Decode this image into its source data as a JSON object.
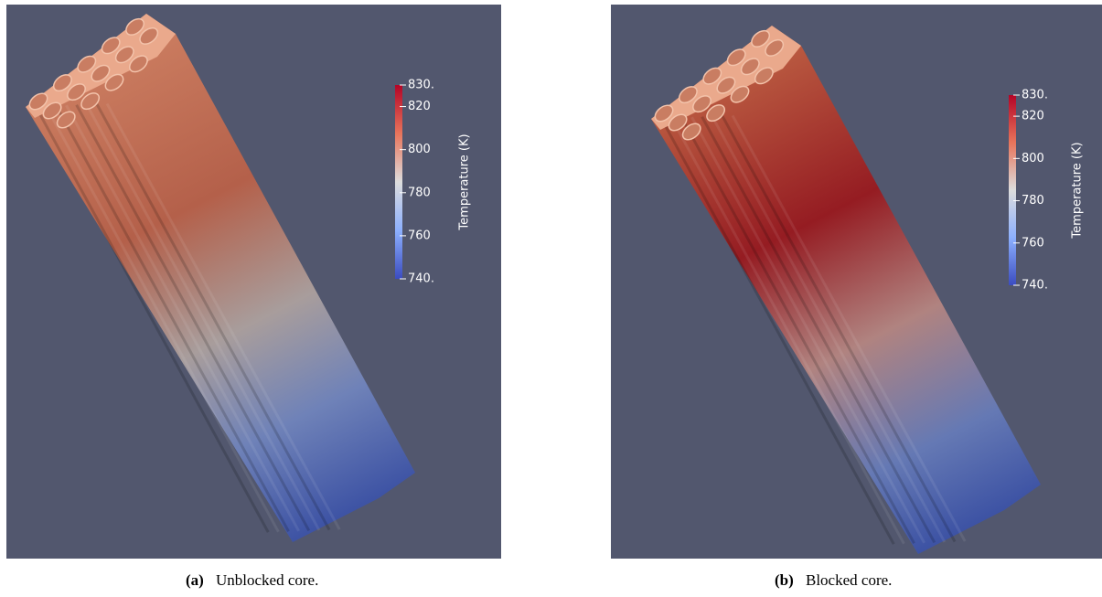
{
  "panels": [
    {
      "label": "(a)",
      "caption": "Unblocked core.",
      "colorbar": {
        "title": "Temperature (K)",
        "lim": [
          740,
          830
        ],
        "ticks": [
          {
            "value": 830,
            "label": "830."
          },
          820,
          800,
          780,
          760,
          {
            "value": 740,
            "label": "740."
          }
        ]
      }
    },
    {
      "label": "(b)",
      "caption": "Blocked core.",
      "colorbar": {
        "title": "Temperature (K)",
        "lim": [
          740,
          830
        ],
        "ticks": [
          {
            "value": 830,
            "label": "830."
          },
          820,
          800,
          780,
          760,
          {
            "value": 740,
            "label": "740."
          }
        ]
      }
    }
  ]
}
